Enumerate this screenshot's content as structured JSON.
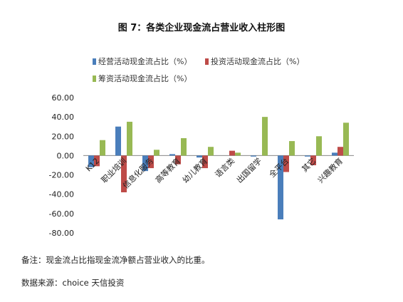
{
  "figure": {
    "title": "图 7：各类企业现金流占营业收入柱形图",
    "notes": [
      "备注：现金流占比指现金流净额占营业收入的比重。",
      "数据来源：choice  天信投资"
    ]
  },
  "chart_data": {
    "type": "bar",
    "title": "图 7：各类企业现金流占营业收入柱形图",
    "categories": [
      "K12",
      "职业培训",
      "信息化服务",
      "高等教育",
      "幼儿教育",
      "语言类",
      "出国留学",
      "全平台",
      "其它",
      "兴趣教育"
    ],
    "series": [
      {
        "name": "经营活动现金流占比（%）",
        "color": "#4a7ebb",
        "values": [
          -12,
          30,
          -16,
          1.5,
          -2,
          0,
          -1,
          -66,
          -1,
          3
        ]
      },
      {
        "name": "投资活动现金流占比（%）",
        "color": "#be4b48",
        "values": [
          -11,
          -38,
          -13,
          -9,
          -13,
          5,
          0,
          -17,
          -10,
          9
        ]
      },
      {
        "name": "筹资活动现金流占比（%）",
        "color": "#98b954",
        "values": [
          16,
          35,
          6,
          18,
          9,
          3,
          40,
          15,
          20,
          34
        ]
      }
    ],
    "ylim": [
      -80,
      60
    ],
    "yticks": [
      "60.00",
      "40.00",
      "20.00",
      "0.00",
      "-20.00",
      "-40.00",
      "-60.00",
      "-80.00"
    ],
    "xlabel": "",
    "ylabel": "",
    "grid": false,
    "legend_position": "top"
  }
}
